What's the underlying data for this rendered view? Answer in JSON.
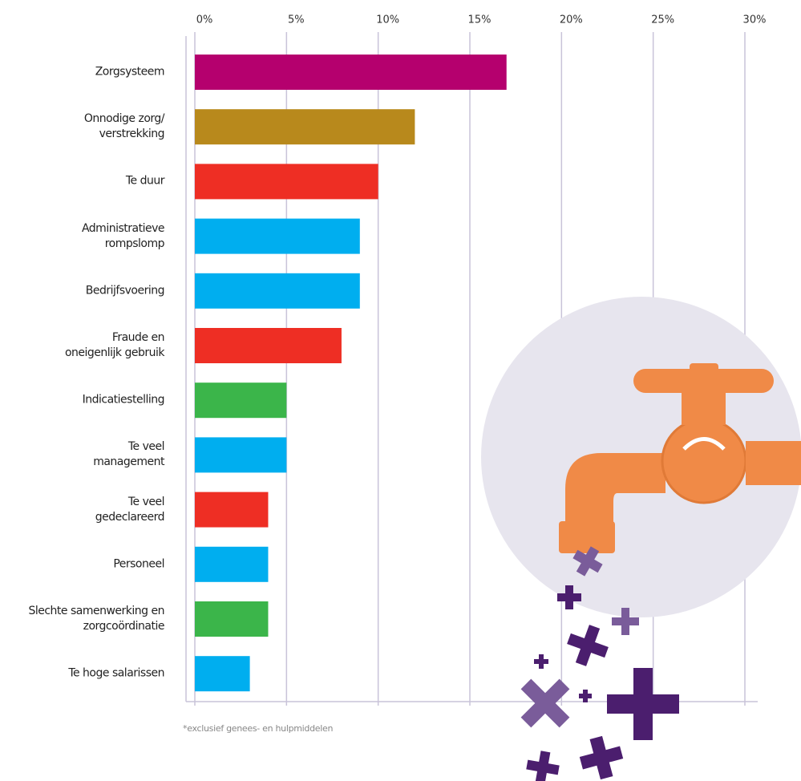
{
  "chart_data": {
    "type": "bar",
    "orientation": "horizontal",
    "categories": [
      "Zorgsysteem",
      "Onnodige zorg/\nverstrekking",
      "Te duur",
      "Administratieve\nrompslomp",
      "Bedrijfsvoering",
      "Fraude en\noneigenlijk gebruik",
      "Indicatiestelling",
      "Te veel\nmanagement",
      "Te veel\ngedeclareerd",
      "Personeel",
      "Slechte samenwerking en\nzorgcoördinatie",
      "Te hoge salarissen"
    ],
    "values": [
      17,
      12,
      10,
      9,
      9,
      8,
      5,
      5,
      4,
      4,
      4,
      3
    ],
    "colors": [
      "#b5006e",
      "#b8891c",
      "#ee2e24",
      "#00aeef",
      "#00aeef",
      "#ee2e24",
      "#3bb54a",
      "#00aeef",
      "#ee2e24",
      "#00aeef",
      "#3bb54a",
      "#00aeef"
    ],
    "xlim": [
      0,
      30
    ],
    "xticks": [
      {
        "value": 0,
        "label": "0%"
      },
      {
        "value": 5,
        "label": "5%"
      },
      {
        "value": 10,
        "label": "10%"
      },
      {
        "value": 15,
        "label": "15%"
      },
      {
        "value": 20,
        "label": "20%"
      },
      {
        "value": 25,
        "label": "25%"
      },
      {
        "value": 30,
        "label": "30%"
      }
    ],
    "grid": true,
    "footnote": "*exclusief genees- en hulpmiddelen"
  }
}
